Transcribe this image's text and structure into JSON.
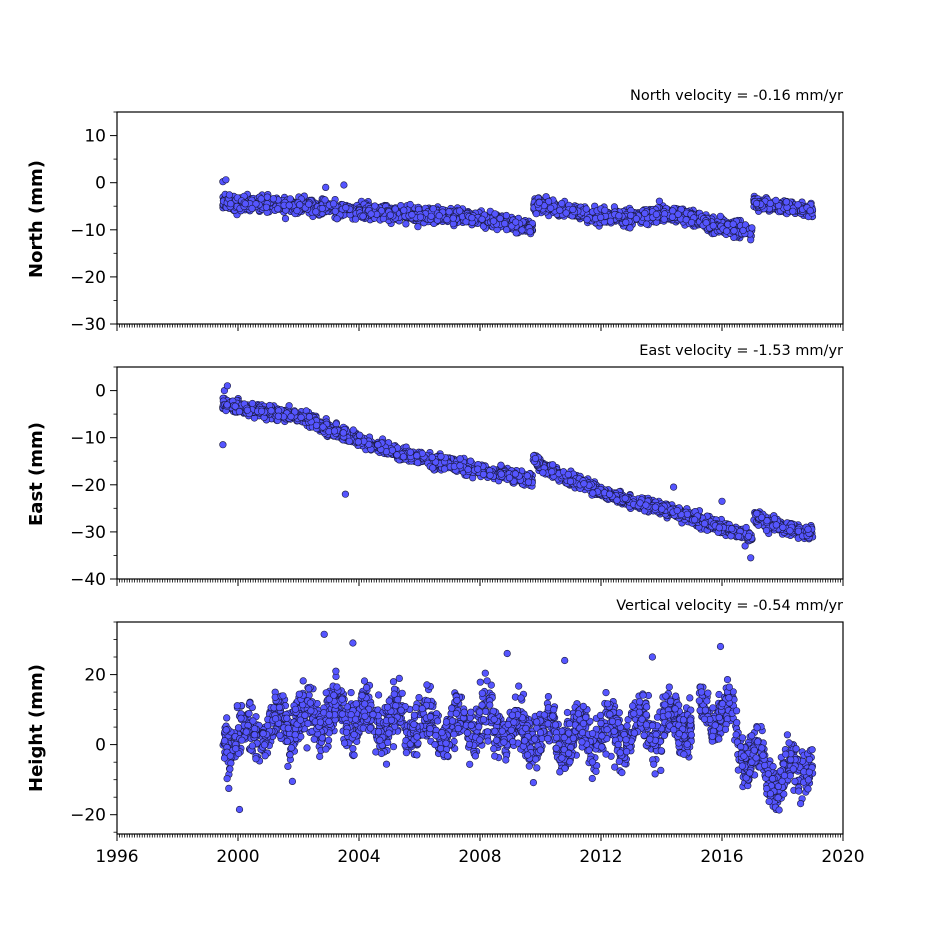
{
  "colors": {
    "marker_fill": "#5555ff",
    "marker_edge": "#1a1a40",
    "axes": "#000000",
    "background": "#ffffff"
  },
  "chart_data": [
    {
      "type": "scatter",
      "title": "North velocity = -0.16 mm/yr",
      "xlabel": "",
      "ylabel": "North (mm)",
      "xlim": [
        1996,
        2020
      ],
      "ylim": [
        -30,
        15
      ],
      "yticks": [
        10,
        0,
        -10,
        -20,
        -30
      ],
      "ytick_labels": [
        "10",
        "0",
        "−10",
        "−20",
        "−30"
      ],
      "grid": false,
      "segments": [
        {
          "x": [
            1999.5,
            2000,
            2001,
            2002,
            2003,
            2004,
            2005,
            2006,
            2007,
            2008,
            2009,
            2009.75
          ],
          "y": [
            -4,
            -4.5,
            -4.5,
            -5,
            -5.5,
            -6,
            -6.5,
            -7,
            -7,
            -7.5,
            -8.5,
            -9.5
          ],
          "spread": 3
        },
        {
          "x": [
            2009.75,
            2010,
            2011,
            2012,
            2013,
            2014,
            2015,
            2016,
            2016.5,
            2017
          ],
          "y": [
            -4.5,
            -5,
            -6,
            -7,
            -7.5,
            -6.5,
            -7.5,
            -9.5,
            -10,
            -10.5
          ],
          "spread": 3
        },
        {
          "x": [
            2017.05,
            2018,
            2019
          ],
          "y": [
            -4.5,
            -5,
            -6
          ],
          "spread": 2.5
        }
      ],
      "outliers": [
        {
          "x": 2003.5,
          "y": -0.5
        },
        {
          "x": 2002.9,
          "y": -1
        },
        {
          "x": 1999.5,
          "y": 0.2
        },
        {
          "x": 1999.6,
          "y": 0.6
        }
      ]
    },
    {
      "type": "scatter",
      "title": "East velocity = -1.53 mm/yr",
      "xlabel": "",
      "ylabel": "East (mm)",
      "xlim": [
        1996,
        2020
      ],
      "ylim": [
        -40,
        5
      ],
      "yticks": [
        0,
        -10,
        -20,
        -30,
        -40
      ],
      "ytick_labels": [
        "0",
        "−10",
        "−20",
        "−30",
        "−40"
      ],
      "grid": false,
      "segments": [
        {
          "x": [
            1999.5,
            2000,
            2001,
            2002,
            2003,
            2004,
            2005,
            2006,
            2007,
            2008,
            2009,
            2009.75
          ],
          "y": [
            -3,
            -3.5,
            -4.5,
            -5.5,
            -8,
            -10.5,
            -12.5,
            -14.5,
            -15.5,
            -17,
            -18,
            -19
          ],
          "spread": 2.5
        },
        {
          "x": [
            2009.75,
            2010,
            2011,
            2012,
            2013,
            2014,
            2015,
            2016,
            2016.5,
            2017
          ],
          "y": [
            -14.5,
            -16,
            -19,
            -21.5,
            -23.5,
            -25,
            -27,
            -29,
            -30,
            -31.5
          ],
          "spread": 2.5
        },
        {
          "x": [
            2017.05,
            2018,
            2019
          ],
          "y": [
            -27,
            -29,
            -30.5
          ],
          "spread": 2.5
        }
      ],
      "outliers": [
        {
          "x": 2003.55,
          "y": -22
        },
        {
          "x": 1999.5,
          "y": -11.5
        },
        {
          "x": 1999.55,
          "y": 0
        },
        {
          "x": 1999.65,
          "y": 1
        },
        {
          "x": 2016.0,
          "y": -23.5
        },
        {
          "x": 2016.95,
          "y": -35.5
        },
        {
          "x": 2014.4,
          "y": -20.5
        }
      ]
    },
    {
      "type": "scatter",
      "title": "Vertical velocity = -0.54 mm/yr",
      "xlabel": "",
      "ylabel": "Height (mm)",
      "xlim": [
        1996,
        2020
      ],
      "ylim": [
        -25.5,
        35
      ],
      "xticks": [
        1996,
        2000,
        2004,
        2008,
        2012,
        2016,
        2020
      ],
      "xtick_labels": [
        "1996",
        "2000",
        "2004",
        "2008",
        "2012",
        "2016",
        "2020"
      ],
      "yticks": [
        20,
        0,
        -20
      ],
      "ytick_labels": [
        "20",
        "0",
        "−20"
      ],
      "grid": false,
      "segments": [
        {
          "x": [
            1999.5,
            2000,
            2001,
            2002,
            2003,
            2004,
            2005,
            2006,
            2007,
            2008,
            2009,
            2010,
            2011,
            2012,
            2013,
            2014,
            2015
          ],
          "y": [
            3,
            2,
            5,
            7,
            9,
            8,
            7,
            6,
            5,
            6,
            4,
            3,
            2,
            3,
            4,
            5,
            6
          ],
          "spread": 14
        },
        {
          "x": [
            2015.25,
            2016,
            2016.4
          ],
          "y": [
            9,
            9,
            6
          ],
          "spread": 11
        },
        {
          "x": [
            2016.4,
            2017,
            2017.5,
            2018,
            2018.5,
            2019
          ],
          "y": [
            3,
            -3,
            -10,
            -9,
            -7,
            -4
          ],
          "spread": 13
        }
      ],
      "outliers": [
        {
          "x": 2002.85,
          "y": 31.5
        },
        {
          "x": 2003.8,
          "y": 29
        },
        {
          "x": 2015.95,
          "y": 28
        },
        {
          "x": 2008.9,
          "y": 26
        },
        {
          "x": 2000.05,
          "y": -18.5
        },
        {
          "x": 2001.8,
          "y": -10.5
        },
        {
          "x": 2010.8,
          "y": 24
        },
        {
          "x": 2013.7,
          "y": 25
        }
      ]
    }
  ]
}
